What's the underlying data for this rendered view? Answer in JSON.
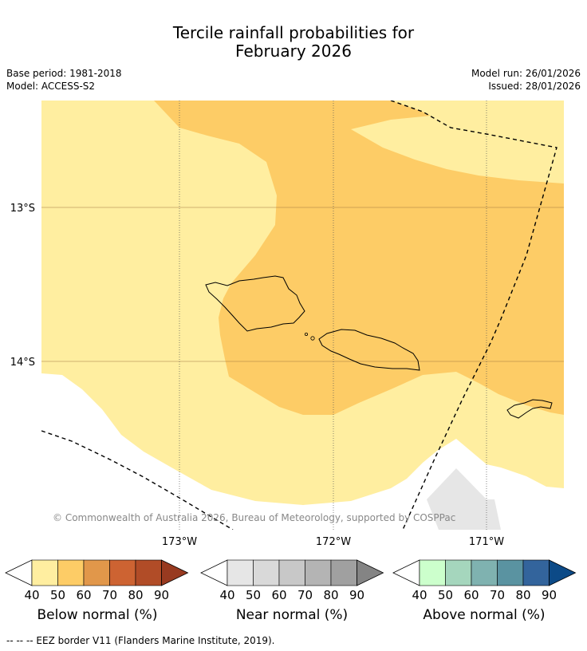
{
  "title_line1": "Tercile rainfall probabilities for",
  "title_line2": "February 2026",
  "meta": {
    "base_period": "Base period: 1981-2018",
    "model": "Model: ACCESS-S2",
    "model_run": "Model run: 26/01/2026",
    "issued": "Issued: 28/01/2026"
  },
  "map": {
    "lat_labels": [
      "13°S",
      "14°S"
    ],
    "lon_labels": [
      "173°W",
      "172°W",
      "171°W"
    ],
    "copyright": "© Commonwealth of Australia 2026, Bureau of Meteorology, supported by COSPPac"
  },
  "legends": [
    {
      "title": "Below normal (%)",
      "ticks": [
        "40",
        "50",
        "60",
        "70",
        "80",
        "90"
      ],
      "colors": [
        "#ffeea0",
        "#fdcc66",
        "#e1974a",
        "#cd6332",
        "#b14c27",
        "#983a20"
      ]
    },
    {
      "title": "Near normal (%)",
      "ticks": [
        "40",
        "50",
        "60",
        "70",
        "80",
        "90"
      ],
      "colors": [
        "#e6e6e6",
        "#d9d9d9",
        "#c8c8c8",
        "#b4b4b4",
        "#a0a0a0",
        "#848484"
      ]
    },
    {
      "title": "Above normal (%)",
      "ticks": [
        "40",
        "50",
        "60",
        "70",
        "80",
        "90"
      ],
      "colors": [
        "#ccffcc",
        "#a5d6bd",
        "#7fb2b0",
        "#5a93a1",
        "#33649c",
        "#0c4a87"
      ]
    }
  ],
  "footnote": "--  --  -- EEZ border V11 (Flanders Marine Institute, 2019).",
  "colors": {
    "light_yellow": "#ffeea0",
    "orange": "#fdcc66",
    "grey": "#e6e6e6"
  }
}
